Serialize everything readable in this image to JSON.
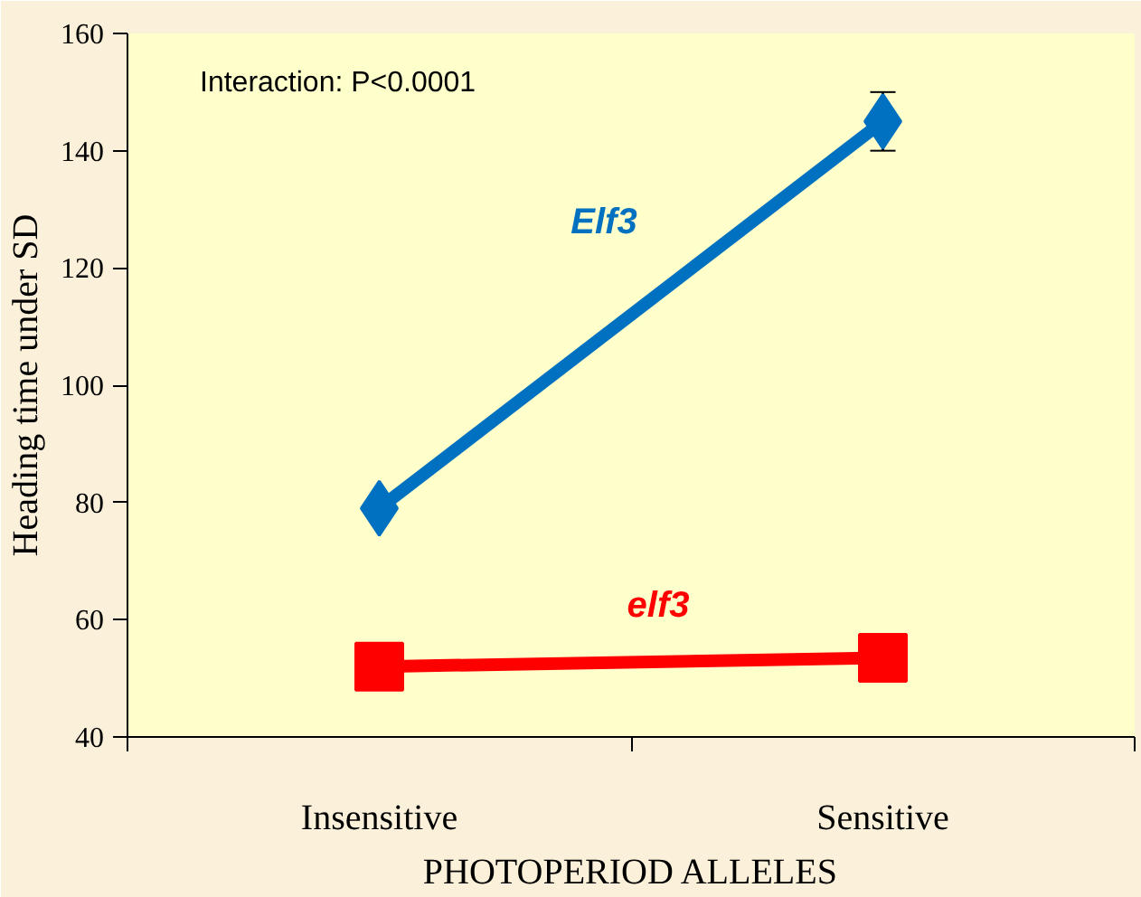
{
  "chart_data": {
    "type": "line",
    "xlabel": "PHOTOPERIOD ALLELES",
    "ylabel": "Heading time under SD",
    "categories": [
      "Insensitive",
      "Sensitive"
    ],
    "series": [
      {
        "name": "Elf3",
        "color": "#0070c0",
        "values": [
          79,
          145
        ],
        "errors": [
          null,
          5
        ],
        "marker": "diamond"
      },
      {
        "name": "elf3",
        "color": "#ff0000",
        "values": [
          52,
          53.5
        ],
        "marker": "square"
      }
    ],
    "ylim": [
      40,
      160
    ],
    "yticks": [
      40,
      60,
      80,
      100,
      120,
      140,
      160
    ],
    "annotations": [
      "Interaction: P<0.0001"
    ],
    "grid": false,
    "legend": false,
    "line_style": "solid"
  }
}
